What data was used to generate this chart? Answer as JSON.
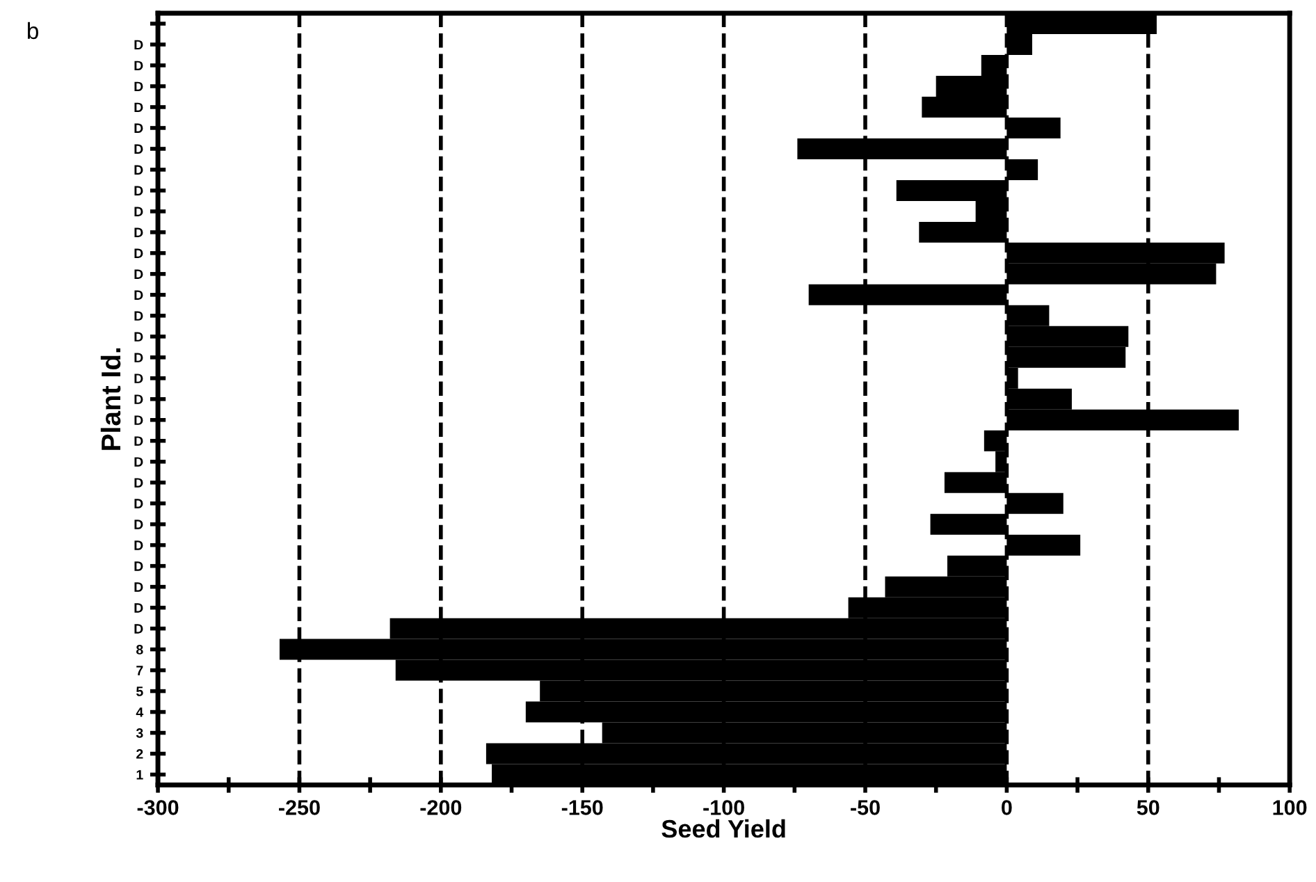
{
  "chart_data": {
    "type": "bar",
    "orientation": "horizontal",
    "xlabel": "Seed Yield",
    "ylabel": "Plant Id.",
    "annotations": [
      "b"
    ],
    "categories": [
      null,
      "D",
      "D",
      "D",
      "D",
      "D",
      "D",
      "D",
      "D",
      "D",
      "D",
      "D",
      "D",
      "D",
      "D",
      "D",
      "D",
      "D",
      "D",
      "D",
      "D",
      "D",
      "D",
      "D",
      "D",
      "D",
      "D",
      "D",
      "D",
      "D",
      "8",
      "7",
      "5",
      "4",
      "3",
      "2",
      "1"
    ],
    "values": [
      53,
      9,
      -9,
      -25,
      -30,
      19,
      -74,
      11,
      -39,
      -11,
      -31,
      77,
      74,
      -70,
      15,
      43,
      42,
      4,
      23,
      82,
      -8,
      -4,
      -22,
      20,
      -27,
      26,
      -21,
      -43,
      -56,
      -218,
      -257,
      -216,
      -165,
      -170,
      -143,
      -184,
      -182
    ],
    "color": "#000000",
    "xlim": [
      -300,
      100
    ],
    "xticks": [
      -300,
      {
        "value": -275,
        "label": null
      },
      -250,
      {
        "value": -225,
        "label": null
      },
      -200,
      {
        "value": -175,
        "label": null
      },
      -150,
      {
        "value": -125,
        "label": null
      },
      -100,
      {
        "value": -75,
        "label": null
      },
      -50,
      {
        "value": -25,
        "label": null
      },
      0,
      {
        "value": 25,
        "label": null
      },
      50,
      {
        "value": 75,
        "label": null
      },
      100
    ],
    "grid": "x",
    "line_style": "dashed"
  }
}
